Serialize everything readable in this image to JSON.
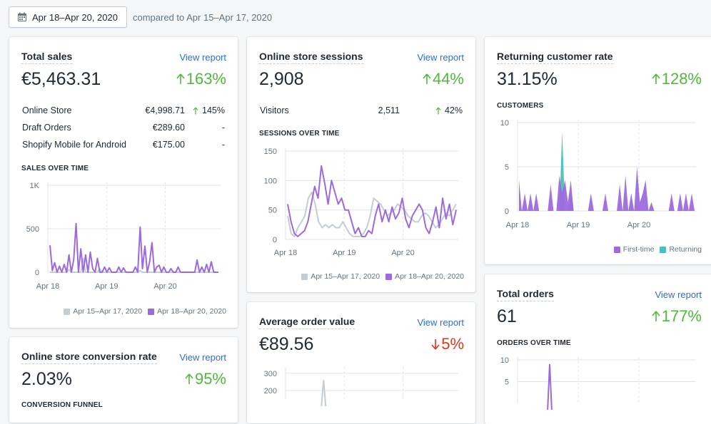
{
  "header": {
    "date_range": "Apr 18–Apr 20, 2020",
    "compare_text": "compared to Apr 15–Apr 17, 2020"
  },
  "colors": {
    "purple": "#9c6ade",
    "grey": "#c4cdd5",
    "teal": "#47c1bf",
    "up": "#50b83c",
    "down": "#de3618",
    "link": "#2c6ecb"
  },
  "cards": {
    "total_sales": {
      "title": "Total sales",
      "view_report": "View report",
      "value": "€5,463.31",
      "change": "163%",
      "rows": [
        {
          "name": "Online Store",
          "value": "€4,998.71",
          "change": "145%"
        },
        {
          "name": "Draft Orders",
          "value": "€289.60",
          "change": "-"
        },
        {
          "name": "Shopify Mobile for Android",
          "value": "€175.00",
          "change": "-"
        }
      ],
      "chart_label": "SALES OVER TIME",
      "legend": [
        "Apr 15–Apr 17, 2020",
        "Apr 18–Apr 20, 2020"
      ]
    },
    "sessions": {
      "title": "Online store sessions",
      "view_report": "View report",
      "value": "2,908",
      "change": "44%",
      "rows": [
        {
          "name": "Visitors",
          "value": "2,511",
          "change": "42%"
        }
      ],
      "chart_label": "SESSIONS OVER TIME",
      "legend": [
        "Apr 15–Apr 17, 2020",
        "Apr 18–Apr 20, 2020"
      ]
    },
    "returning": {
      "title": "Returning customer rate",
      "value": "31.15%",
      "change": "128%",
      "chart_label": "CUSTOMERS",
      "legend": [
        "First-time",
        "Returning"
      ]
    },
    "conversion": {
      "title": "Online store conversion rate",
      "view_report": "View report",
      "value": "2.03%",
      "change": "95%",
      "section_label": "CONVERSION FUNNEL"
    },
    "aov": {
      "title": "Average order value",
      "view_report": "View report",
      "value": "€89.56",
      "change": "5%"
    },
    "total_orders": {
      "title": "Total orders",
      "view_report": "View report",
      "value": "61",
      "change": "177%",
      "chart_label": "ORDERS OVER TIME"
    }
  },
  "chart_data": [
    {
      "type": "line",
      "id": "sales",
      "x_ticks": [
        "Apr 18",
        "Apr 19",
        "Apr 20"
      ],
      "y_ticks": [
        "0",
        "500",
        "1K"
      ],
      "ylim": [
        0,
        1000
      ],
      "series": [
        {
          "name": "Apr 15–Apr 17, 2020",
          "values": [
            0,
            0,
            0,
            0,
            0,
            0,
            0,
            0,
            30,
            0,
            0,
            0,
            0,
            0,
            160,
            0,
            0,
            0,
            0,
            0,
            0,
            40,
            0,
            0,
            0,
            0,
            0,
            0,
            0,
            0,
            0,
            0,
            0,
            0,
            0,
            0,
            0,
            0,
            20,
            0,
            0,
            0,
            0,
            0,
            0,
            0,
            0,
            0,
            0,
            0,
            0,
            0,
            0,
            0,
            0,
            0,
            0,
            0,
            0,
            0,
            0,
            0,
            0,
            0,
            0,
            0,
            0,
            0,
            0,
            0,
            0,
            0
          ]
        },
        {
          "name": "Apr 18–Apr 20, 2020",
          "values": [
            310,
            20,
            110,
            0,
            70,
            0,
            90,
            0,
            200,
            0,
            140,
            560,
            0,
            270,
            0,
            200,
            0,
            230,
            40,
            0,
            160,
            0,
            0,
            60,
            0,
            50,
            0,
            0,
            0,
            60,
            0,
            50,
            0,
            0,
            0,
            0,
            60,
            0,
            520,
            40,
            300,
            0,
            120,
            340,
            0,
            60,
            80,
            0,
            60,
            0,
            0,
            40,
            0,
            0,
            60,
            0,
            0,
            0,
            0,
            0,
            0,
            0,
            140,
            0,
            60,
            0,
            90,
            0,
            120,
            0,
            0,
            0
          ]
        }
      ]
    },
    {
      "type": "line",
      "id": "sessions",
      "x_ticks": [
        "Apr 18",
        "Apr 19",
        "Apr 20"
      ],
      "y_ticks": [
        "0",
        "50",
        "100",
        "150"
      ],
      "ylim": [
        0,
        150
      ],
      "series": [
        {
          "name": "Apr 15–Apr 17, 2020",
          "values": [
            40,
            10,
            5,
            20,
            30,
            40,
            70,
            80,
            60,
            30,
            20,
            25,
            20,
            25,
            20,
            20,
            30,
            20,
            10,
            5,
            5,
            5,
            10,
            20,
            40,
            70,
            65,
            60,
            50,
            40,
            45,
            50,
            60,
            55,
            50,
            40,
            35,
            30,
            30,
            40,
            45,
            40,
            30,
            20,
            25,
            35,
            45,
            40,
            50,
            60
          ]
        },
        {
          "name": "Apr 18–Apr 20, 2020",
          "values": [
            60,
            30,
            10,
            5,
            10,
            15,
            30,
            60,
            90,
            70,
            125,
            95,
            60,
            100,
            80,
            60,
            70,
            50,
            50,
            30,
            10,
            20,
            5,
            5,
            15,
            10,
            40,
            60,
            30,
            50,
            30,
            55,
            35,
            45,
            70,
            35,
            20,
            40,
            50,
            60,
            50,
            20,
            10,
            30,
            55,
            20,
            70,
            35,
            60,
            25,
            50
          ]
        }
      ]
    },
    {
      "type": "area",
      "id": "customers",
      "x_ticks": [
        "Apr 18",
        "Apr 19",
        "Apr 20"
      ],
      "y_ticks": [
        "0",
        "5",
        "10"
      ],
      "ylim": [
        0,
        10
      ],
      "series": [
        {
          "name": "First-time",
          "values": [
            3.5,
            0,
            2,
            0,
            2,
            0,
            2,
            0,
            0,
            0,
            0,
            3,
            0,
            0,
            4,
            2,
            3.5,
            1,
            3.5,
            0,
            0,
            0,
            0,
            0,
            0,
            2,
            0,
            0,
            0,
            0,
            2,
            0,
            0,
            0,
            0,
            3,
            0,
            4,
            0,
            2,
            0,
            5,
            1,
            2,
            3.5,
            0,
            1,
            0,
            0,
            0,
            0,
            0,
            0,
            2,
            0,
            0,
            2,
            0,
            2,
            0,
            2,
            0
          ]
        },
        {
          "name": "Returning",
          "values": [
            0,
            0,
            0,
            0,
            0,
            0,
            0,
            0,
            0,
            0,
            0,
            0,
            0,
            0,
            0,
            9,
            0,
            0,
            2,
            0,
            0,
            0,
            0,
            0,
            0,
            0,
            0,
            0,
            0,
            0,
            0,
            0,
            0,
            0,
            0,
            0,
            0,
            0,
            0,
            0,
            0,
            0,
            0,
            0,
            0,
            0,
            0,
            0,
            0,
            0,
            0,
            0,
            0,
            0,
            0,
            0,
            0,
            0,
            0,
            0,
            0,
            0
          ]
        }
      ]
    },
    {
      "type": "line",
      "id": "aov",
      "y_ticks": [
        "200",
        "300"
      ],
      "ylim": [
        150,
        320
      ],
      "series": [
        {
          "name": "Apr 15–Apr 17, 2020",
          "values": [
            0,
            0,
            0,
            0,
            0,
            0,
            0,
            0,
            0,
            0,
            0,
            0,
            0,
            0,
            0,
            0,
            0,
            0,
            0,
            0,
            0,
            0,
            0,
            0,
            0,
            0,
            0,
            0,
            0,
            0,
            0,
            0,
            0,
            0,
            0,
            0,
            0,
            0,
            0,
            0,
            0,
            0,
            0,
            0,
            0,
            0,
            0,
            0,
            0,
            0
          ]
        }
      ]
    },
    {
      "type": "line",
      "id": "orders",
      "y_ticks": [
        "5",
        "10"
      ],
      "ylim": [
        0,
        10
      ],
      "series": [
        {
          "name": "Apr 18–Apr 20, 2020",
          "values": [
            0,
            0,
            0,
            0,
            0,
            0,
            0,
            0,
            0,
            0,
            0,
            0,
            9,
            0,
            0,
            0,
            0,
            0,
            0,
            0,
            0,
            0,
            0,
            0,
            0,
            0,
            0,
            0,
            0,
            0,
            0,
            0,
            0,
            0,
            0,
            0,
            0,
            0,
            0,
            0,
            0,
            0,
            0,
            0,
            0,
            0,
            0,
            0,
            0,
            0
          ]
        }
      ]
    }
  ]
}
